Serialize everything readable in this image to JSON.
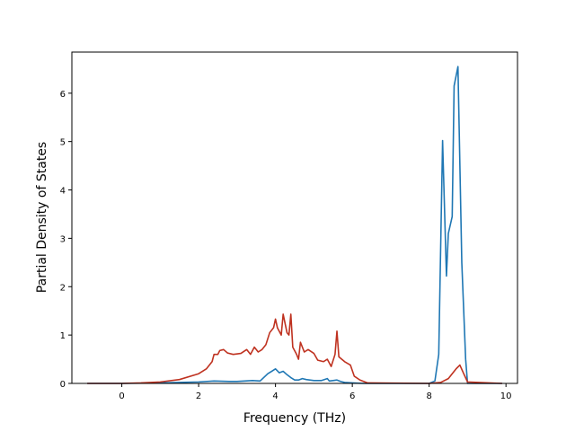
{
  "chart_data": {
    "type": "line",
    "title": "",
    "xlabel": "Frequency (THz)",
    "ylabel": "Partial Density of States",
    "xlim": [
      -1.3,
      10.3
    ],
    "ylim": [
      0,
      6.85
    ],
    "xticks": [
      0,
      2,
      4,
      6,
      8,
      10
    ],
    "yticks": [
      0,
      1,
      2,
      3,
      4,
      5,
      6
    ],
    "grid": false,
    "legend": "none",
    "series": [
      {
        "color": "#1f77b4",
        "x": [
          -0.9,
          0,
          1,
          2,
          2.4,
          2.8,
          3.0,
          3.2,
          3.4,
          3.6,
          3.8,
          3.9,
          4.0,
          4.1,
          4.2,
          4.3,
          4.4,
          4.5,
          4.6,
          4.7,
          4.8,
          5.0,
          5.2,
          5.35,
          5.4,
          5.5,
          5.6,
          5.7,
          5.8,
          6.0,
          6.3,
          6.5,
          8.0,
          8.15,
          8.25,
          8.35,
          8.45,
          8.5,
          8.6,
          8.65,
          8.75,
          8.85,
          8.95,
          9.0,
          9.9
        ],
        "values": [
          0,
          0,
          0.01,
          0.03,
          0.05,
          0.04,
          0.04,
          0.05,
          0.06,
          0.05,
          0.2,
          0.25,
          0.3,
          0.22,
          0.25,
          0.18,
          0.12,
          0.07,
          0.07,
          0.1,
          0.08,
          0.06,
          0.06,
          0.1,
          0.05,
          0.06,
          0.07,
          0.04,
          0.02,
          0.01,
          0,
          0,
          0,
          0.05,
          0.6,
          5.02,
          2.22,
          3.1,
          3.45,
          6.15,
          6.55,
          2.5,
          0.5,
          0,
          0
        ]
      },
      {
        "color": "#bf3220",
        "x": [
          -0.9,
          0,
          0.5,
          1.0,
          1.5,
          2.0,
          2.2,
          2.35,
          2.4,
          2.5,
          2.55,
          2.65,
          2.75,
          2.9,
          3.1,
          3.25,
          3.35,
          3.45,
          3.55,
          3.65,
          3.75,
          3.85,
          3.95,
          4.0,
          4.05,
          4.15,
          4.2,
          4.3,
          4.35,
          4.4,
          4.45,
          4.55,
          4.6,
          4.65,
          4.75,
          4.85,
          5.0,
          5.1,
          5.25,
          5.35,
          5.45,
          5.55,
          5.6,
          5.65,
          5.8,
          5.95,
          6.05,
          6.2,
          6.4,
          8.0,
          8.3,
          8.5,
          8.6,
          8.7,
          8.8,
          8.9,
          9.0,
          9.9
        ],
        "values": [
          0,
          0,
          0.01,
          0.03,
          0.08,
          0.2,
          0.3,
          0.45,
          0.6,
          0.6,
          0.68,
          0.7,
          0.63,
          0.6,
          0.62,
          0.7,
          0.6,
          0.75,
          0.65,
          0.7,
          0.8,
          1.05,
          1.15,
          1.33,
          1.15,
          1.0,
          1.43,
          1.05,
          1.0,
          1.43,
          0.75,
          0.6,
          0.5,
          0.85,
          0.65,
          0.7,
          0.62,
          0.48,
          0.45,
          0.5,
          0.35,
          0.6,
          1.08,
          0.55,
          0.45,
          0.38,
          0.15,
          0.07,
          0.01,
          0,
          0.02,
          0.1,
          0.2,
          0.3,
          0.38,
          0.2,
          0.03,
          0
        ]
      }
    ]
  }
}
